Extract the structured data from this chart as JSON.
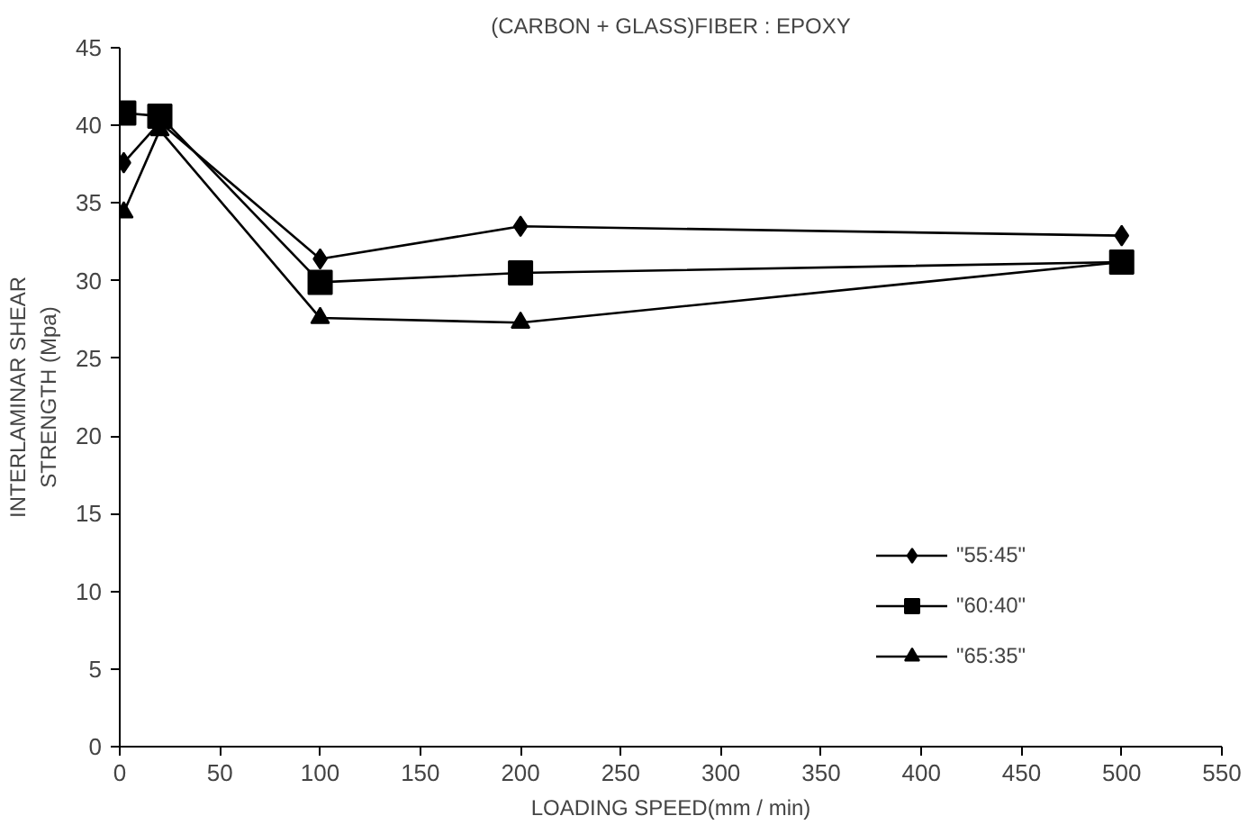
{
  "chart_data": {
    "type": "line",
    "title": "(CARBON + GLASS)FIBER : EPOXY",
    "xlabel": "LOADING SPEED(mm / min)",
    "ylabel": "INTERLAMINAR SHEAR\nSTRENGTH (Mpa)",
    "x": [
      2,
      20,
      100,
      200,
      500
    ],
    "series": [
      {
        "name": "\"55:45\"",
        "color": "#000000",
        "marker": "diamond",
        "values": [
          37.6,
          40.2,
          31.4,
          33.5,
          32.9
        ]
      },
      {
        "name": "\"60:40\"",
        "color": "#000000",
        "marker": "square",
        "values": [
          40.8,
          40.6,
          29.9,
          30.5,
          31.2
        ]
      },
      {
        "name": "\"65:35\"",
        "color": "#000000",
        "marker": "triangle",
        "values": [
          34.4,
          39.7,
          27.6,
          27.3,
          31.2
        ]
      }
    ],
    "xlim": [
      0,
      550
    ],
    "xticks": [
      0,
      50,
      100,
      150,
      200,
      250,
      300,
      350,
      400,
      450,
      500,
      550
    ],
    "ylim": [
      0,
      45
    ],
    "yticks": [
      0,
      5,
      10,
      15,
      20,
      25,
      30,
      35,
      40,
      45
    ],
    "grid": false,
    "legend": "right",
    "line_style": "solid"
  }
}
